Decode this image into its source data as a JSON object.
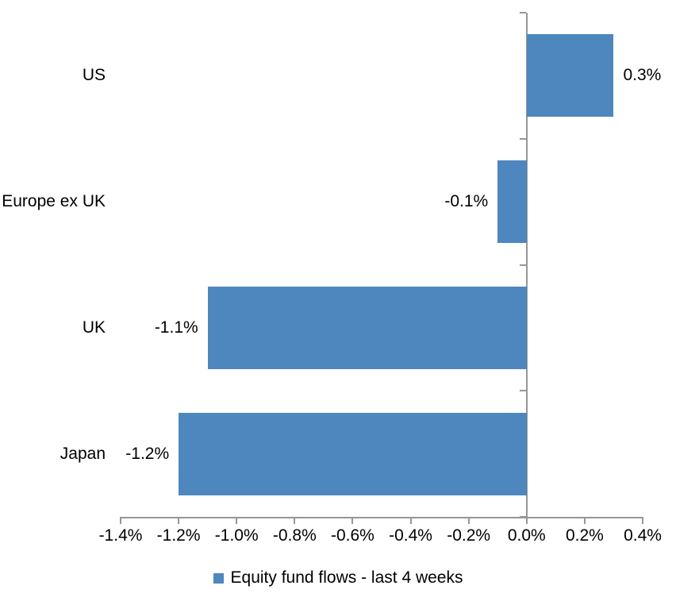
{
  "chart_data": {
    "type": "bar",
    "orientation": "horizontal",
    "title": "",
    "xlabel": "",
    "ylabel": "",
    "categories": [
      "US",
      "Europe ex UK",
      "UK",
      "Japan"
    ],
    "series_name": "Equity fund flows - last 4 weeks",
    "values": [
      0.3,
      -0.1,
      -1.1,
      -1.2
    ],
    "data_labels": [
      "0.3%",
      "-0.1%",
      "-1.1%",
      "-1.2%"
    ],
    "xlim": [
      -1.4,
      0.4
    ],
    "x_tick_step": 0.2,
    "x_tick_labels": [
      "-1.4%",
      "-1.2%",
      "-1.0%",
      "-0.8%",
      "-0.6%",
      "-0.4%",
      "-0.2%",
      "0.0%",
      "0.2%",
      "0.4%"
    ],
    "grid": false,
    "legend_position": "bottom",
    "legend_label": "Equity fund flows - last 4 weeks",
    "colors": {
      "bar": "#4E87BE",
      "axis": "#969696",
      "text": "#000000",
      "background": "#FFFFFF"
    }
  }
}
